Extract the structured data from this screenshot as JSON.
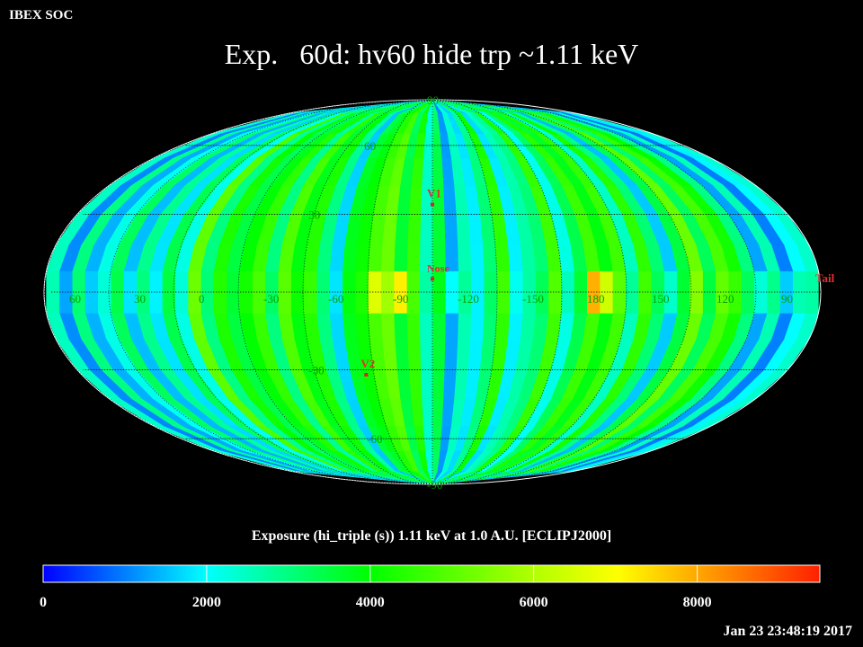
{
  "header": {
    "soc_label": "IBEX SOC",
    "title": "Exp.   60d: hv60 hide trp ~1.11 keV",
    "subtitle": "Exposure (hi_triple (s))  1.11 keV at 1.0 A.U. [ECLIPJ2000]",
    "timestamp": "Jan 23 23:48:19 2017"
  },
  "chart_data": {
    "type": "heatmap",
    "projection": "mollweide",
    "frame": "ECLIPJ2000",
    "center_longitude": 255,
    "longitude_increases": "leftward",
    "grid": true,
    "longitude_labels": [
      "60",
      "30",
      "0",
      "-30",
      "-60",
      "-90",
      "-120",
      "-150",
      "180",
      "150",
      "120",
      "90"
    ],
    "longitude_label_values": [
      60,
      30,
      0,
      -30,
      -60,
      -90,
      -120,
      -150,
      180,
      150,
      120,
      90
    ],
    "latitude_labels": [
      "90",
      "60",
      "30",
      "-30",
      "-60",
      "-90"
    ],
    "latitude_label_values": [
      90,
      60,
      30,
      -30,
      -60,
      -90
    ],
    "markers": [
      {
        "label": "V1",
        "lon": 255,
        "lat": 34
      },
      {
        "label": "Nose",
        "lon": 255,
        "lat": 5
      },
      {
        "label": "V2",
        "lon": 289,
        "lat": -32
      },
      {
        "label": "Tail",
        "lon": 75,
        "lat": 0
      }
    ],
    "colorbar": {
      "min": 0,
      "max": 9500,
      "ticks": [
        0,
        2000,
        4000,
        6000,
        8000
      ],
      "tick_labels": [
        "0",
        "2000",
        "4000",
        "6000",
        "8000"
      ],
      "colors": [
        "#0000ff",
        "#00ffff",
        "#00ff00",
        "#ffff00",
        "#ff0000"
      ]
    },
    "exposure_by_longitude": {
      "bin_width_deg": 6,
      "lon_start": 75,
      "values": [
        2400,
        2000,
        1000,
        2600,
        1300,
        3000,
        4200,
        4800,
        3300,
        5200,
        3500,
        1600,
        3100,
        4500,
        2500,
        4700,
        3900,
        4700,
        3400,
        2200,
        4700,
        3100,
        2700,
        1900,
        4500,
        3100,
        1900,
        2600,
        1300,
        3600,
        2500,
        4600,
        3600,
        5200,
        4800,
        4100,
        3800,
        1700,
        3000,
        4400,
        3900,
        4900,
        3000,
        4600,
        4000,
        3500,
        4300,
        3000,
        5100,
        2200,
        3400,
        1800,
        2900,
        1500,
        3300,
        2200,
        1400,
        3000,
        1100,
        2500
      ]
    },
    "ecliptic_band_exposure_by_longitude": {
      "lat_range": [
        -8,
        8
      ],
      "values": [
        2700,
        2600,
        1600,
        2900,
        2300,
        3300,
        4600,
        5100,
        3500,
        5500,
        3600,
        2400,
        3300,
        4700,
        2800,
        5000,
        6400,
        7900,
        3600,
        2500,
        4900,
        3300,
        2700,
        2100,
        4700,
        3200,
        1900,
        2800,
        2000,
        3800,
        2700,
        4800,
        7200,
        5800,
        6600,
        4300,
        3900,
        1800,
        3100,
        4600,
        4100,
        5000,
        3200,
        4800,
        4200,
        3600,
        4400,
        3100,
        5200,
        2300,
        3500,
        1900,
        3000,
        1800,
        3400,
        2300,
        1600,
        3100,
        1300,
        2600
      ]
    }
  }
}
